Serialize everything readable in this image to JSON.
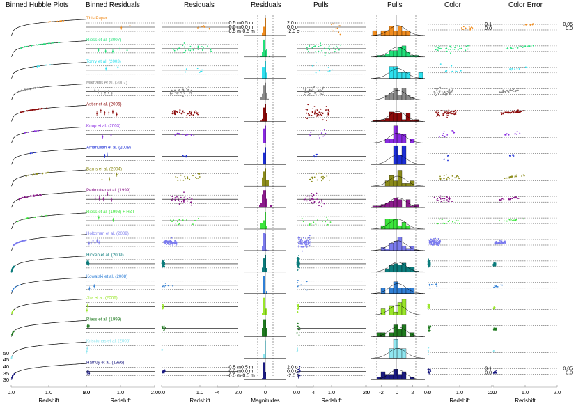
{
  "chart_data": {
    "type": "scatter",
    "colors": {
      "This Paper": "#f08c1e",
      "Riess et al. (2007)": "#22e07a",
      "Tonry et al. (2003)": "#2ee0ee",
      "Miknaitis et al. (2007)": "#8a8a8a",
      "Astier et al. (2006)": "#8b0a0a",
      "Knop et al. (2003)": "#8a2be2",
      "Amanullah et al. (2008)": "#1c2ed6",
      "Barris et al. (2004)": "#8b8b1a",
      "Perlmutter et al. (1999)": "#8b1a8b",
      "Riess et al. (1998) + HZT": "#3ce63c",
      "Holtzman et al. (2009)": "#7b7bee",
      "Hicken et al. (2009)": "#0c7c7c",
      "Kowalski et al. (2008)": "#2f7fd6",
      "Jha et al. (2006)": "#9ae62a",
      "Riess et al. (1999)": "#1f7a1f",
      "Krisciunas et al. (2005)": "#8fe6f0",
      "Hamuy et al. (1996)": "#1a1a80"
    },
    "datasets": [
      {
        "name": "This Paper",
        "zmin": 0.9,
        "zmax": 1.4,
        "n": 10,
        "res_spread": 0.12
      },
      {
        "name": "Riess et al. (2007)",
        "zmin": 0.25,
        "zmax": 1.3,
        "n": 30,
        "res_spread": 0.25
      },
      {
        "name": "Tonry et al. (2003)",
        "zmin": 0.4,
        "zmax": 1.1,
        "n": 8,
        "res_spread": 0.2
      },
      {
        "name": "Miknaitis et al. (2007)",
        "zmin": 0.2,
        "zmax": 0.8,
        "n": 40,
        "res_spread": 0.2
      },
      {
        "name": "Astier et al. (2006)",
        "zmin": 0.25,
        "zmax": 0.95,
        "n": 50,
        "res_spread": 0.18
      },
      {
        "name": "Knop et al. (2003)",
        "zmin": 0.35,
        "zmax": 0.85,
        "n": 11,
        "res_spread": 0.12
      },
      {
        "name": "Amanullah et al. (2008)",
        "zmin": 0.5,
        "zmax": 0.65,
        "n": 5,
        "res_spread": 0.1
      },
      {
        "name": "Barris et al. (2004)",
        "zmin": 0.35,
        "zmax": 1.0,
        "n": 18,
        "res_spread": 0.3
      },
      {
        "name": "Perlmutter et al. (1999)",
        "zmin": 0.2,
        "zmax": 0.8,
        "n": 30,
        "res_spread": 0.35
      },
      {
        "name": "Riess et al. (1998) + HZT",
        "zmin": 0.15,
        "zmax": 1.0,
        "n": 14,
        "res_spread": 0.25
      },
      {
        "name": "Holtzman et al. (2009)",
        "zmin": 0.05,
        "zmax": 0.4,
        "n": 90,
        "res_spread": 0.15
      },
      {
        "name": "Hicken et al. (2009)",
        "zmin": 0.01,
        "zmax": 0.08,
        "n": 100,
        "res_spread": 0.15
      },
      {
        "name": "Kowalski et al. (2008)",
        "zmin": 0.02,
        "zmax": 0.3,
        "n": 8,
        "res_spread": 0.12
      },
      {
        "name": "Jha et al. (2006)",
        "zmin": 0.01,
        "zmax": 0.06,
        "n": 15,
        "res_spread": 0.15
      },
      {
        "name": "Riess et al. (1999)",
        "zmin": 0.01,
        "zmax": 0.1,
        "n": 12,
        "res_spread": 0.15
      },
      {
        "name": "Krisciunas et al. (2005)",
        "zmin": 0.01,
        "zmax": 0.03,
        "n": 5,
        "res_spread": 0.1
      },
      {
        "name": "Hamuy et al. (1996)",
        "zmin": 0.01,
        "zmax": 0.1,
        "n": 18,
        "res_spread": 0.12
      }
    ],
    "panels": [
      {
        "title": "Binned Hubble Plots",
        "xlabel": "Redshift",
        "xticks": [
          "0.0",
          "1.0",
          "2.0"
        ],
        "yticks": [
          "50",
          "45",
          "40",
          "35",
          "30"
        ]
      },
      {
        "title": "Binned Residuals",
        "xlabel": "Redshift",
        "xticks": [
          "0.0",
          "1.0",
          "2.0"
        ]
      },
      {
        "title": "Residuals",
        "xlabel": "Redshift",
        "xticks": [
          "0.0",
          "1.0",
          "2.0"
        ],
        "yticks": [
          "0.5 m",
          "0.0 m",
          "-0.5 m"
        ]
      },
      {
        "title": "Residuals",
        "xlabel": "Magnitudes",
        "xticks": [
          "-4",
          "0",
          "4"
        ],
        "yticks": [
          "0.5 m",
          "0.0 m",
          "-0.5 m"
        ]
      },
      {
        "title": "Pulls",
        "xlabel": "Redshift",
        "xticks": [
          "0.0",
          "1.0",
          "2.0"
        ],
        "yticks": [
          "2.0 σ",
          "0.0 σ",
          "-2.0 σ"
        ]
      },
      {
        "title": "Pulls",
        "xlabel": "",
        "xticks": [
          "-4",
          "-2",
          "0",
          "2",
          "4"
        ]
      },
      {
        "title": "Color",
        "xlabel": "Redshift",
        "xticks": [
          "0.0",
          "1.0",
          "2.0"
        ],
        "yticks": [
          "0.1",
          "0.0"
        ]
      },
      {
        "title": "Color Error",
        "xlabel": "Redshift",
        "xticks": [
          "0.0",
          "1.0",
          "2.0"
        ],
        "yticks": [
          "0.05",
          "0.0"
        ]
      }
    ]
  }
}
